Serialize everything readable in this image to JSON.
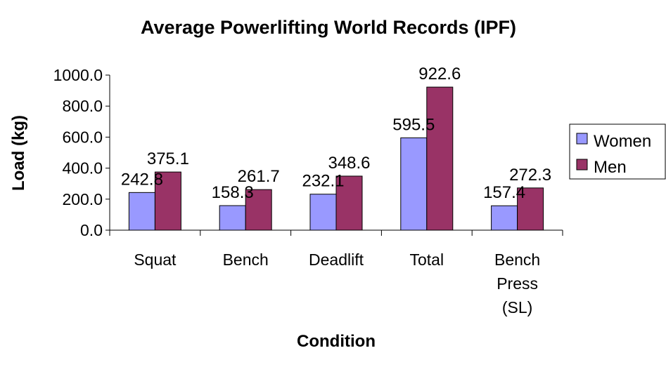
{
  "chart_data": {
    "type": "bar",
    "title": "Average Powerlifting World Records (IPF)",
    "xlabel": "Condition",
    "ylabel": "Load (kg)",
    "ylim": [
      0,
      1000
    ],
    "yticks": [
      "0.0",
      "200.0",
      "400.0",
      "600.0",
      "800.0",
      "1000.0"
    ],
    "categories": [
      [
        "Squat"
      ],
      [
        "Bench"
      ],
      [
        "Deadlift"
      ],
      [
        "Total"
      ],
      [
        "Bench",
        "Press",
        "(SL)"
      ]
    ],
    "series": [
      {
        "name": "Women",
        "color": "#9999FF",
        "values": [
          242.8,
          158.3,
          232.1,
          595.5,
          157.4
        ],
        "labels": [
          "242.8",
          "158.3",
          "232.1",
          "595.5",
          "157.4"
        ]
      },
      {
        "name": "Men",
        "color": "#993366",
        "values": [
          375.1,
          261.7,
          348.6,
          922.6,
          272.3
        ],
        "labels": [
          "375.1",
          "261.7",
          "348.6",
          "922.6",
          "272.3"
        ]
      }
    ],
    "legend": "right",
    "grid": false
  }
}
